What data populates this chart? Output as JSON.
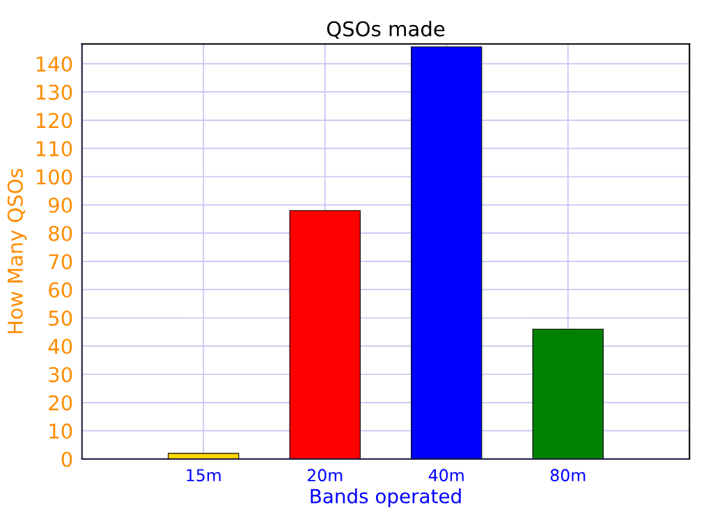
{
  "chart_data": {
    "type": "bar",
    "title": "QSOs made",
    "xlabel": "Bands operated",
    "ylabel": "How Many QSOs",
    "categories": [
      "15m",
      "20m",
      "40m",
      "80m"
    ],
    "values": [
      2,
      88,
      146,
      46
    ],
    "colors": [
      "#ffd700",
      "#ff0000",
      "#0000ff",
      "#008000"
    ],
    "ylim": [
      0,
      147
    ],
    "yticks": [
      0,
      10,
      20,
      30,
      40,
      50,
      60,
      70,
      80,
      90,
      100,
      110,
      120,
      130,
      140
    ],
    "grid": true,
    "legend": false
  }
}
